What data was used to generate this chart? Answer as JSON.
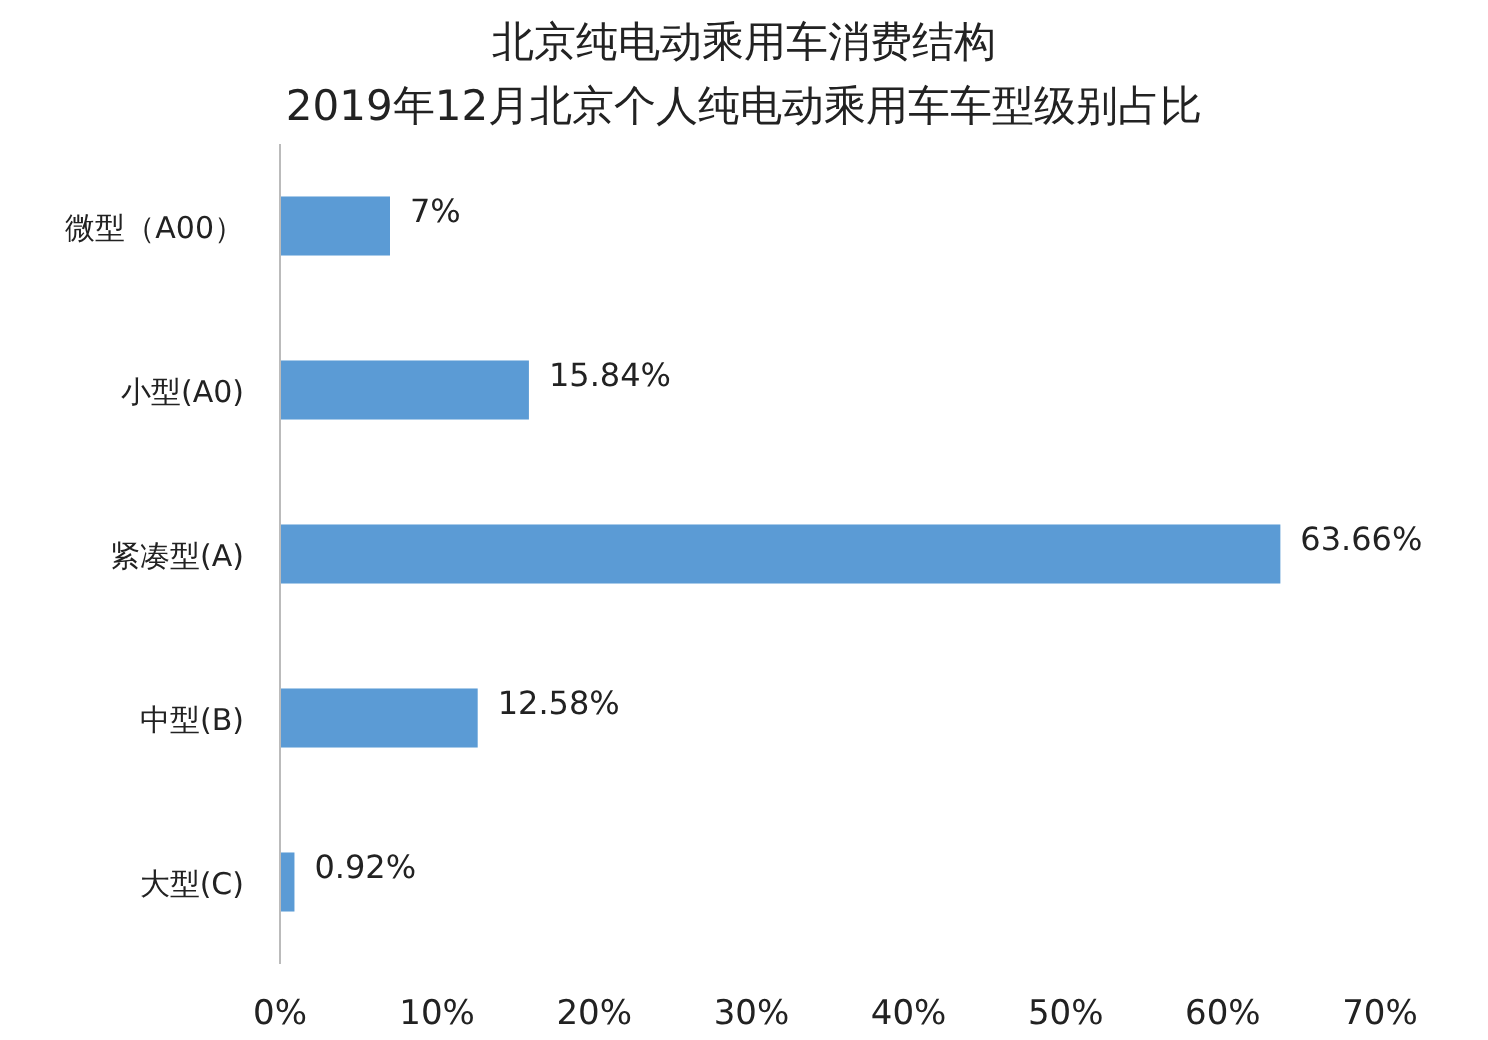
{
  "chart_data": {
    "type": "bar",
    "orientation": "horizontal",
    "title": "北京纯电动乘用车消费结构",
    "subtitle": "2019年12月北京个人纯电动乘用车车型级别占比",
    "categories": [
      "微型（A00）",
      "小型(A0)",
      "紧凑型(A)",
      "中型(B)",
      "大型(C)"
    ],
    "values": [
      7,
      15.84,
      63.66,
      12.58,
      0.92
    ],
    "value_labels": [
      "7%",
      "15.84%",
      "63.66%",
      "12.58%",
      "0.92%"
    ],
    "color": "#5b9bd5",
    "xlim": [
      0,
      70
    ],
    "xticks": [
      {
        "value": 0,
        "label": "0%"
      },
      {
        "value": 10,
        "label": "10%"
      },
      {
        "value": 20,
        "label": "20%"
      },
      {
        "value": 30,
        "label": "30%"
      },
      {
        "value": 40,
        "label": "40%"
      },
      {
        "value": 50,
        "label": "50%"
      },
      {
        "value": 60,
        "label": "60%"
      },
      {
        "value": 70,
        "label": "70%"
      }
    ],
    "grid": false
  }
}
